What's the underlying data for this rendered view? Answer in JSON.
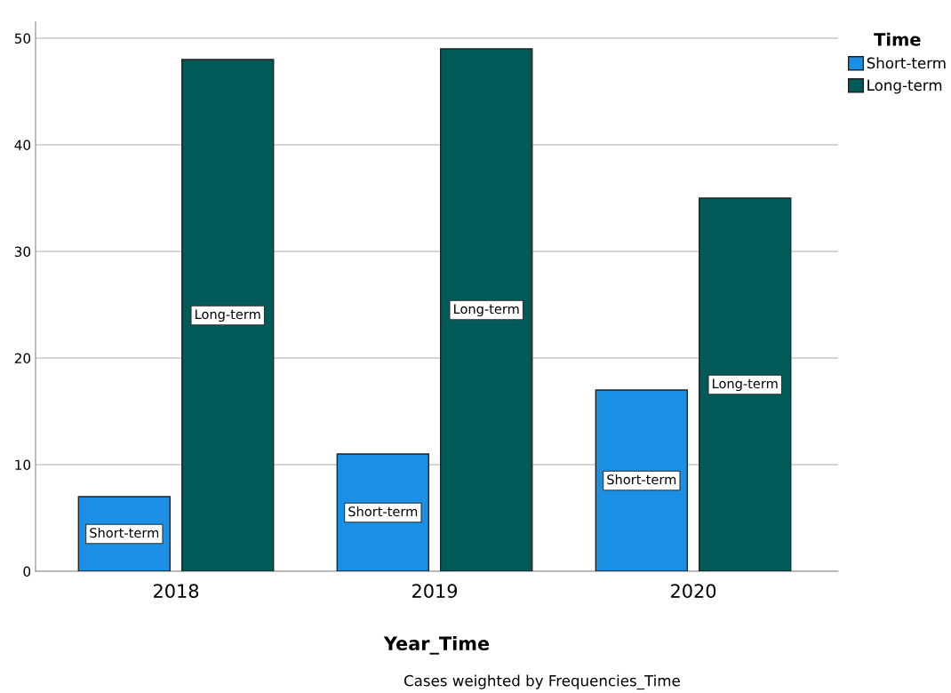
{
  "chart_data": {
    "type": "bar",
    "xlabel": "Year_Time",
    "legend_title": "Time",
    "categories": [
      "2018",
      "2019",
      "2020"
    ],
    "series": [
      {
        "name": "Short-term",
        "color": "#1a8fe3",
        "values": [
          7,
          11,
          17
        ],
        "value_labels": [
          "Short-term",
          "Short-term",
          "Short-term"
        ]
      },
      {
        "name": "Long-term",
        "color": "#005a58",
        "values": [
          48,
          49,
          35
        ],
        "value_labels": [
          "Long-term",
          "Long-term",
          "Long-term"
        ]
      }
    ],
    "ylim": [
      0,
      51.5
    ],
    "yticks": [
      0,
      10,
      20,
      30,
      40,
      50
    ],
    "grid": "y",
    "legend": "top right",
    "annotations": [
      "Cases weighted by Frequencies_Time"
    ]
  }
}
